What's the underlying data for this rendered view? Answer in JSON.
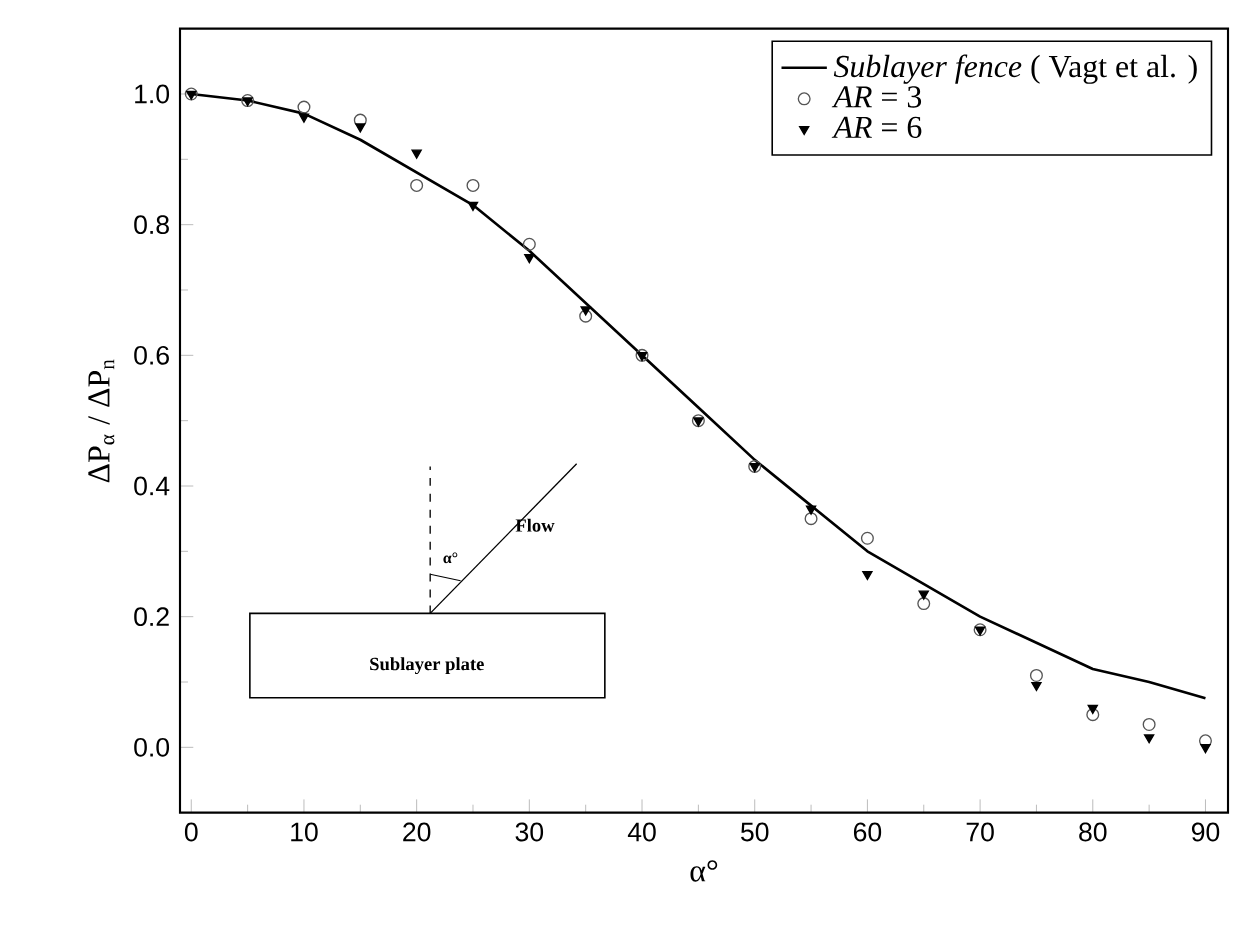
{
  "chart_data": {
    "type": "line",
    "xlabel": "α°",
    "ylabel": "ΔP$_{α}$ / ΔP$_{n}$",
    "x": [
      0,
      5,
      10,
      15,
      20,
      25,
      30,
      35,
      40,
      45,
      50,
      55,
      60,
      65,
      70,
      75,
      80,
      85,
      90
    ],
    "series": [
      {
        "name": "*Sublayer fence* ( Vagt et al. )",
        "marker": "none",
        "line_style": "solid",
        "color": "#000000",
        "values": [
          1.0,
          0.99,
          0.97,
          0.93,
          0.88,
          0.83,
          0.76,
          0.68,
          0.6,
          0.52,
          0.44,
          0.37,
          0.3,
          0.25,
          0.2,
          0.16,
          0.12,
          0.1,
          0.075
        ]
      },
      {
        "name": "*AR* = 3",
        "type": "scatter",
        "marker": "circle",
        "color": "#555555",
        "values": [
          1.0,
          0.99,
          0.98,
          0.96,
          0.86,
          0.86,
          0.77,
          0.66,
          0.6,
          0.5,
          0.43,
          0.35,
          0.32,
          0.22,
          0.18,
          0.11,
          0.05,
          0.035,
          0.01
        ]
      },
      {
        "name": "*AR* = 6",
        "type": "scatter",
        "marker": "triangle",
        "color": "#000000",
        "values": [
          1.0,
          0.99,
          0.965,
          0.95,
          0.91,
          0.83,
          0.75,
          0.67,
          0.6,
          0.5,
          0.43,
          0.365,
          0.265,
          0.235,
          0.18,
          0.095,
          0.06,
          0.015,
          0.0
        ]
      }
    ],
    "xlim": [
      -1,
      92
    ],
    "ylim": [
      -0.1,
      1.1
    ],
    "xticks": [
      0,
      10,
      20,
      30,
      40,
      50,
      60,
      70,
      80,
      90
    ],
    "yticks": [
      {
        "value": 0.0,
        "label": "0.0"
      },
      {
        "value": 0.2,
        "label": "0.2"
      },
      {
        "value": 0.4,
        "label": "0.4"
      },
      {
        "value": 0.6,
        "label": "0.6"
      },
      {
        "value": 0.8,
        "label": "0.8"
      },
      {
        "value": 1.0,
        "label": "1.0"
      }
    ],
    "legend": "top right",
    "grid": false,
    "annotations": [
      "Flow",
      "α°",
      "Sublayer plate"
    ]
  }
}
